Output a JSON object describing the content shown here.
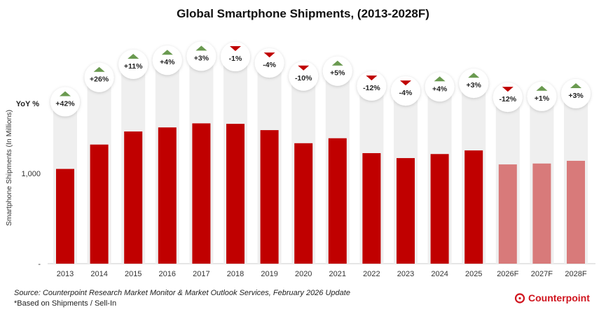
{
  "chart_data": {
    "type": "bar",
    "title": "Global Smartphone Shipments, (2013-2028F)",
    "ylabel": "Smartphone Shipments (In Millions)",
    "yticks": [
      {
        "value": 0,
        "label": "-"
      },
      {
        "value": 1000,
        "label": "1,000"
      }
    ],
    "ylim": [
      0,
      2000
    ],
    "grid": false,
    "yoy_label": "YoY %",
    "categories": [
      "2013",
      "2014",
      "2015",
      "2016",
      "2017",
      "2018",
      "2019",
      "2020",
      "2021",
      "2022",
      "2023",
      "2024",
      "2025",
      "2026F",
      "2027F",
      "2028F"
    ],
    "values": [
      1050,
      1320,
      1465,
      1510,
      1555,
      1550,
      1480,
      1335,
      1390,
      1225,
      1170,
      1215,
      1255,
      1100,
      1110,
      1140
    ],
    "forecast": [
      false,
      false,
      false,
      false,
      false,
      false,
      false,
      false,
      false,
      false,
      false,
      false,
      false,
      true,
      true,
      true
    ],
    "yoy": [
      "+42%",
      "+26%",
      "+11%",
      "+4%",
      "+3%",
      "-1%",
      "-4%",
      "-10%",
      "+5%",
      "-12%",
      "-4%",
      "+4%",
      "+3%",
      "-12%",
      "+1%",
      "+3%"
    ],
    "colors": {
      "actual": "#c00000",
      "forecast": "#d87a7a",
      "up": "#6a9a50",
      "down": "#c00000",
      "column_bg": "#efefef"
    }
  },
  "footer": {
    "source": "Source: Counterpoint Research Market Monitor & Market Outlook Services, February 2026 Update",
    "note": "*Based on Shipments / Sell-In"
  },
  "logo": {
    "text": "Counterpoint"
  }
}
